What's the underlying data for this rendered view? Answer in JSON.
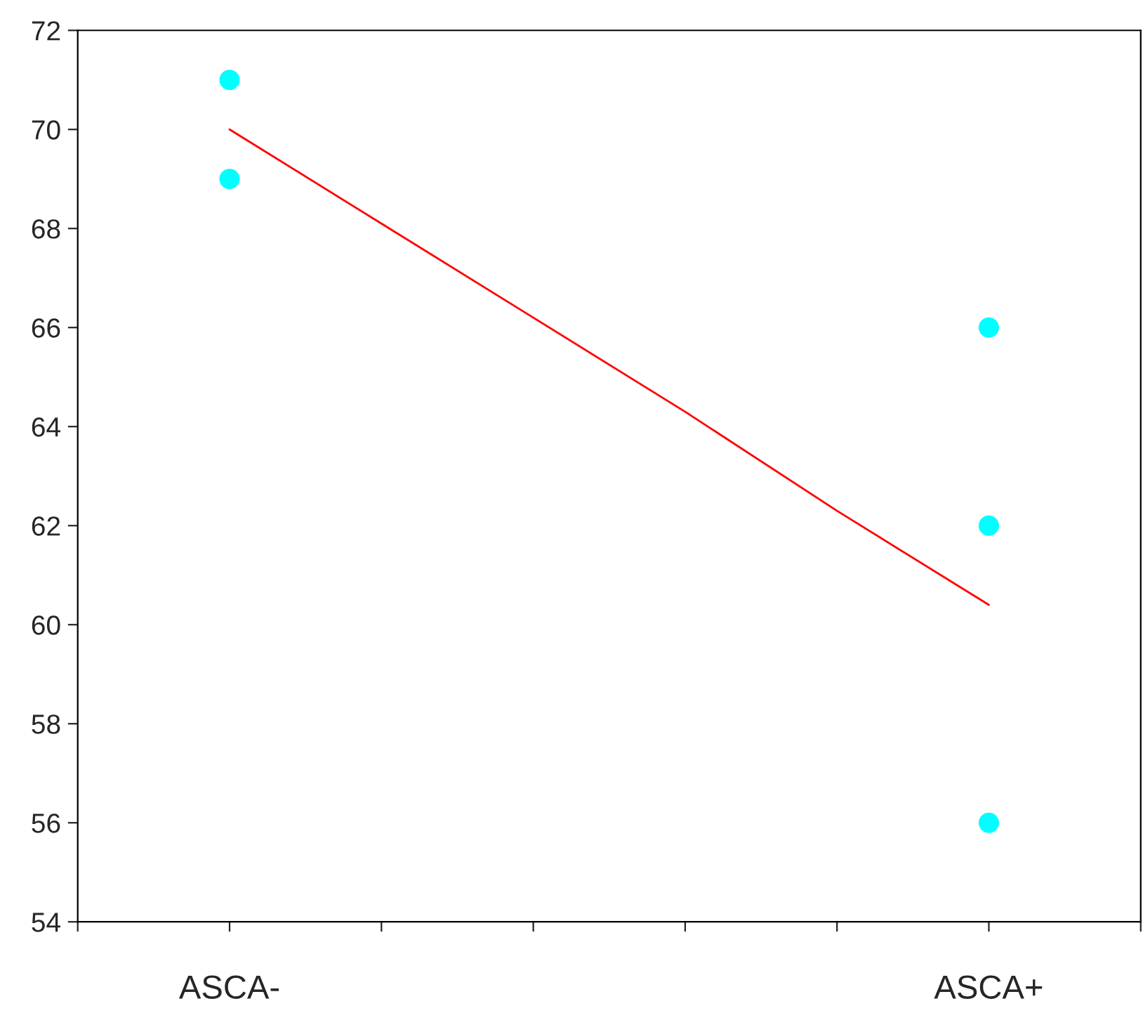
{
  "chart_data": {
    "type": "scatter",
    "categories": [
      null,
      "ASCA-",
      null,
      null,
      null,
      null,
      "ASCA+",
      null
    ],
    "ylim": [
      54,
      72
    ],
    "yticks": [
      54,
      56,
      58,
      60,
      62,
      64,
      66,
      68,
      70,
      72
    ],
    "grid": false,
    "series": [
      {
        "color": "#00ffff",
        "marker": "circle",
        "x": [
          "ASCA-",
          "ASCA-",
          "ASCA+",
          "ASCA+",
          "ASCA+"
        ],
        "values": [
          71,
          69,
          66,
          62,
          56
        ]
      },
      {
        "type": "line",
        "marker": "none",
        "color": "#ff0000",
        "values": [
          null,
          70.0,
          68.1,
          66.2,
          64.3,
          62.3,
          60.4,
          null
        ]
      }
    ]
  }
}
